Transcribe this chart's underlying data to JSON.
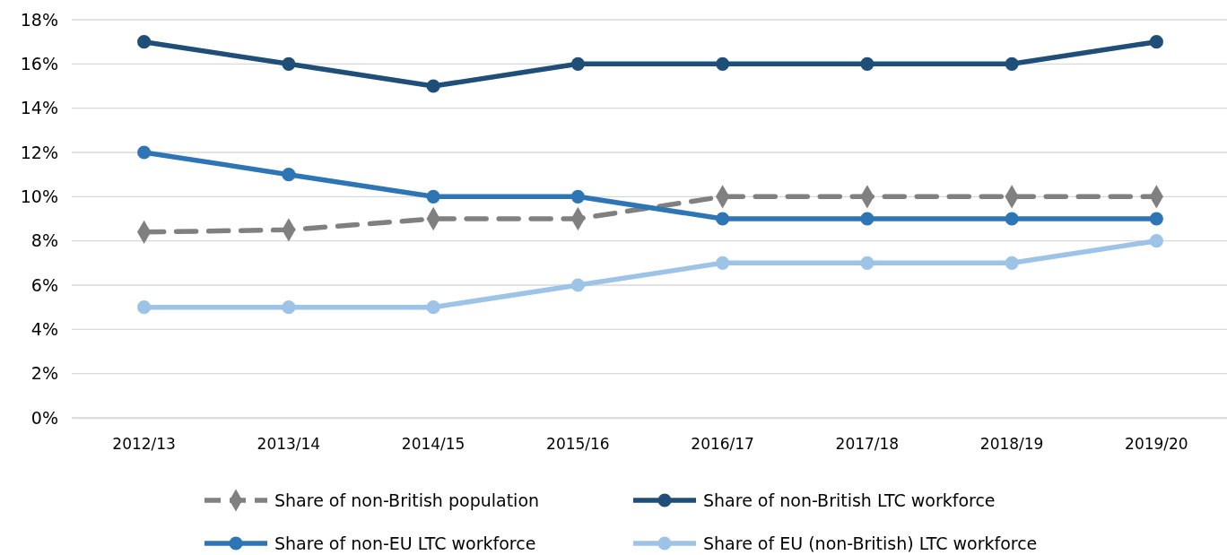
{
  "chart_data": {
    "type": "line",
    "categories": [
      "2012/13",
      "2013/14",
      "2014/15",
      "2015/16",
      "2016/17",
      "2017/18",
      "2018/19",
      "2019/20"
    ],
    "series": [
      {
        "name": "Share of non-British population",
        "color": "#808080",
        "marker": "diamond",
        "line_style": "dashed",
        "values": [
          8.4,
          8.5,
          9,
          9,
          10,
          10,
          10,
          10
        ]
      },
      {
        "name": "Share of non-British LTC workforce",
        "color": "#1f4e79",
        "marker": "circle",
        "line_style": "solid",
        "values": [
          17,
          16,
          15,
          16,
          16,
          16,
          16,
          17
        ]
      },
      {
        "name": "Share of non-EU LTC workforce",
        "color": "#2e75b6",
        "marker": "circle",
        "line_style": "solid",
        "values": [
          12,
          11,
          10,
          10,
          9,
          9,
          9,
          9
        ]
      },
      {
        "name": "Share of EU (non-British) LTC workforce",
        "color": "#9dc3e6",
        "marker": "circle",
        "line_style": "solid",
        "values": [
          5,
          5,
          5,
          6,
          7,
          7,
          7,
          8
        ]
      }
    ],
    "ylim": [
      0,
      18
    ],
    "yticks": [
      {
        "value": 0,
        "label": "0%"
      },
      {
        "value": 2,
        "label": "2%"
      },
      {
        "value": 4,
        "label": "4%"
      },
      {
        "value": 6,
        "label": "6%"
      },
      {
        "value": 8,
        "label": "8%"
      },
      {
        "value": 10,
        "label": "10%"
      },
      {
        "value": 12,
        "label": "12%"
      },
      {
        "value": 14,
        "label": "14%"
      },
      {
        "value": 16,
        "label": "16%"
      },
      {
        "value": 18,
        "label": "18%"
      }
    ],
    "grid": "y",
    "legend": "bottom"
  }
}
